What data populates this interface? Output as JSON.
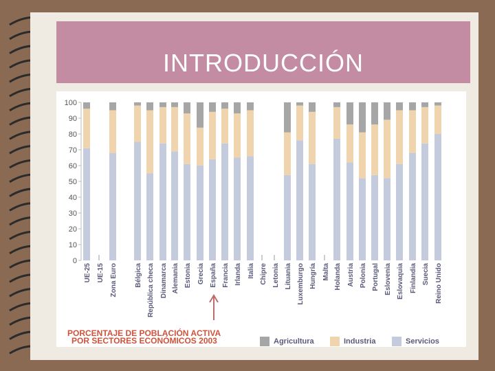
{
  "slide": {
    "title": "INTRODUCCIÓN"
  },
  "colors": {
    "agricultura": "#a6a6a6",
    "industria": "#f0d4ad",
    "servicios": "#c4cbdd",
    "title_bg": "#c48ca2",
    "caption": "#d0523a"
  },
  "chart_data": {
    "type": "bar",
    "stacked": true,
    "title": "PORCENTAJE DE POBLACIÓN ACTIVA POR SECTORES ECONÓMICOS 2003",
    "title_lines": [
      "PORCENTAJE DE POBLACIÓN ACTIVA",
      "POR SECTORES ECONÓMICOS 2003"
    ],
    "ylim": [
      0,
      100
    ],
    "yticks": [
      0,
      10,
      20,
      30,
      40,
      50,
      60,
      70,
      80,
      90,
      100
    ],
    "grid": false,
    "legend_position": "bottom-right",
    "annotation": "arrow pointing to España",
    "categories": [
      "UE-25",
      "UE-15",
      "Zona Euro",
      "Bélgica",
      "República checa",
      "Dinamarca",
      "Alemania",
      "Estonia",
      "Grecia",
      "España",
      "Francia",
      "Irlanda",
      "Italia",
      "Chipre",
      "Letonia",
      "Lituania",
      "Luxemburgo",
      "Hungría",
      "Malta",
      "Holanda",
      "Austria",
      "Polonia",
      "Portugal",
      "Eslovenia",
      "Eslovaquia",
      "Finlandia",
      "Suecia",
      "Reino Unido"
    ],
    "series": [
      {
        "name": "Servicios",
        "values": [
          71,
          null,
          68,
          75,
          55,
          74,
          69,
          61,
          60,
          64,
          74,
          65,
          66,
          null,
          null,
          54,
          76,
          61,
          null,
          77,
          62,
          52,
          54,
          52,
          61,
          68,
          74,
          80
        ]
      },
      {
        "name": "Industria",
        "values": [
          25,
          null,
          27,
          23,
          40,
          23,
          28,
          32,
          24,
          30,
          22,
          28,
          29,
          null,
          null,
          27,
          22,
          33,
          null,
          20,
          24,
          29,
          32,
          37,
          34,
          27,
          23,
          18
        ]
      },
      {
        "name": "Agricultura",
        "values": [
          4,
          null,
          5,
          2,
          5,
          3,
          3,
          7,
          16,
          6,
          4,
          7,
          5,
          null,
          null,
          19,
          2,
          6,
          null,
          3,
          14,
          19,
          14,
          11,
          5,
          5,
          3,
          2
        ]
      }
    ]
  }
}
